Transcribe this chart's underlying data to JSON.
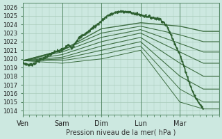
{
  "xlabel": "Pression niveau de la mer( hPa )",
  "bg_color": "#cce8e0",
  "grid_color": "#aaccbb",
  "line_color": "#2d6030",
  "ylim": [
    1013.5,
    1026.5
  ],
  "yticks": [
    1014,
    1015,
    1016,
    1017,
    1018,
    1019,
    1020,
    1021,
    1022,
    1023,
    1024,
    1025,
    1026
  ],
  "day_labels": [
    "Ven",
    "Sam",
    "Dim",
    "Lun",
    "Mar"
  ],
  "day_positions": [
    0.0,
    0.2,
    0.4,
    0.6,
    0.8
  ],
  "xlim": [
    0.0,
    1.0
  ],
  "observed_waypoints_x": [
    0.0,
    0.02,
    0.04,
    0.06,
    0.08,
    0.1,
    0.13,
    0.16,
    0.19,
    0.21,
    0.22,
    0.23,
    0.24,
    0.25,
    0.27,
    0.29,
    0.31,
    0.33,
    0.35,
    0.38,
    0.4,
    0.42,
    0.44,
    0.46,
    0.48,
    0.5,
    0.52,
    0.54,
    0.56,
    0.58,
    0.6,
    0.62,
    0.64,
    0.66,
    0.68,
    0.7,
    0.72,
    0.74,
    0.76,
    0.78,
    0.8,
    0.82,
    0.84,
    0.86,
    0.88,
    0.9,
    0.92
  ],
  "observed_waypoints_y": [
    1019.5,
    1019.4,
    1019.3,
    1019.5,
    1019.8,
    1020.0,
    1020.4,
    1020.8,
    1021.0,
    1021.2,
    1021.4,
    1021.6,
    1021.5,
    1021.3,
    1022.0,
    1022.5,
    1022.8,
    1023.1,
    1023.5,
    1024.0,
    1024.4,
    1024.8,
    1025.1,
    1025.3,
    1025.4,
    1025.5,
    1025.5,
    1025.4,
    1025.3,
    1025.2,
    1025.1,
    1025.0,
    1024.9,
    1024.8,
    1024.7,
    1024.6,
    1024.2,
    1023.5,
    1022.5,
    1021.5,
    1020.5,
    1019.2,
    1017.8,
    1016.5,
    1015.5,
    1014.8,
    1014.2
  ],
  "forecast_lines": [
    {
      "waypoints_x": [
        0.0,
        0.2,
        0.4,
        0.6,
        0.8,
        0.92
      ],
      "waypoints_y": [
        1019.8,
        1021.0,
        1023.5,
        1024.2,
        1023.8,
        1023.2
      ],
      "lw": 1.0
    },
    {
      "waypoints_x": [
        0.0,
        0.2,
        0.4,
        0.6,
        0.8,
        0.92
      ],
      "waypoints_y": [
        1019.8,
        1021.0,
        1023.0,
        1023.8,
        1022.8,
        1022.0
      ],
      "lw": 0.8
    },
    {
      "waypoints_x": [
        0.0,
        0.2,
        0.4,
        0.6,
        0.8,
        0.92
      ],
      "waypoints_y": [
        1019.8,
        1020.8,
        1022.5,
        1023.4,
        1021.8,
        1020.8
      ],
      "lw": 0.8
    },
    {
      "waypoints_x": [
        0.0,
        0.2,
        0.4,
        0.6,
        0.8,
        0.92
      ],
      "waypoints_y": [
        1019.8,
        1020.5,
        1022.0,
        1023.0,
        1020.8,
        1019.5
      ],
      "lw": 0.8
    },
    {
      "waypoints_x": [
        0.0,
        0.2,
        0.4,
        0.6,
        0.8,
        0.92
      ],
      "waypoints_y": [
        1019.8,
        1020.2,
        1021.5,
        1022.5,
        1019.5,
        1018.0
      ],
      "lw": 0.8
    },
    {
      "waypoints_x": [
        0.0,
        0.2,
        0.4,
        0.6,
        0.8,
        0.92
      ],
      "waypoints_y": [
        1019.8,
        1020.0,
        1021.0,
        1022.0,
        1018.0,
        1016.5
      ],
      "lw": 0.8
    },
    {
      "waypoints_x": [
        0.0,
        0.2,
        0.4,
        0.6,
        0.8,
        0.92
      ],
      "waypoints_y": [
        1019.8,
        1019.8,
        1020.5,
        1021.5,
        1016.5,
        1015.0
      ],
      "lw": 0.7
    },
    {
      "waypoints_x": [
        0.0,
        0.2,
        0.4,
        0.6,
        0.8,
        0.92
      ],
      "waypoints_y": [
        1019.8,
        1019.5,
        1020.0,
        1021.0,
        1015.0,
        1014.2
      ],
      "lw": 0.7
    }
  ]
}
